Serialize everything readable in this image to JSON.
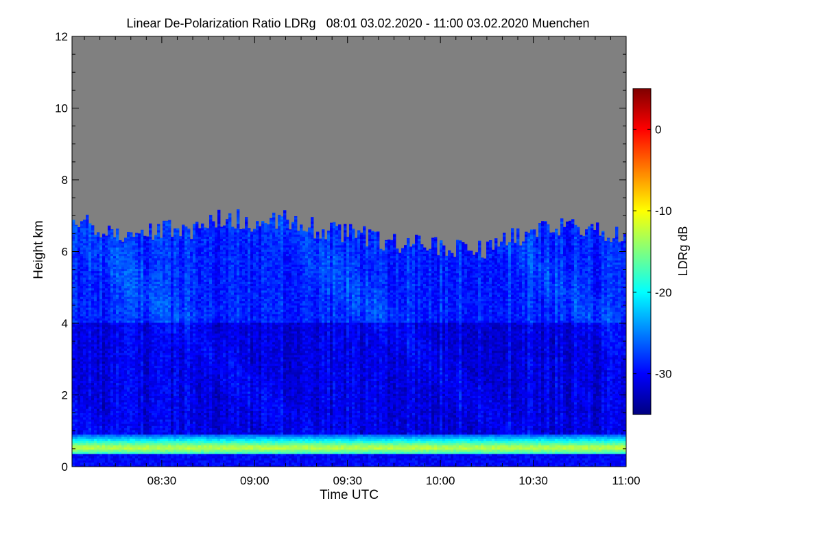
{
  "chart_data": {
    "type": "heatmap",
    "title": "Linear De-Polarization Ratio LDRg   08:01 03.02.2020 - 11:00 03.02.2020 Muenchen",
    "xlabel": "Time UTC",
    "ylabel": "Height km",
    "colorbar_label": "LDRg dB",
    "x_range": [
      "08:01",
      "11:00"
    ],
    "x_ticks": [
      "08:30",
      "09:00",
      "09:30",
      "10:00",
      "10:30",
      "11:00"
    ],
    "x_tick_minutes": [
      29,
      59,
      89,
      119,
      149,
      179
    ],
    "y_range": [
      0,
      12
    ],
    "y_ticks": [
      0,
      2,
      4,
      6,
      8,
      10,
      12
    ],
    "colorbar_range": [
      -35,
      5
    ],
    "colorbar_ticks": [
      0,
      -10,
      -20,
      -30
    ],
    "colormap": [
      "#00007f",
      "#0000ff",
      "#007fff",
      "#00ffff",
      "#7fff7f",
      "#ffff00",
      "#ff7f00",
      "#ff0000",
      "#7f0000"
    ],
    "no_signal_color": "#808080",
    "cloud_top_km": {
      "time_min": [
        0,
        10,
        20,
        30,
        40,
        50,
        60,
        70,
        80,
        90,
        100,
        110,
        120,
        130,
        140,
        150,
        160,
        170,
        179
      ],
      "height": [
        7.0,
        6.6,
        6.5,
        6.7,
        6.6,
        7.0,
        6.7,
        6.9,
        6.6,
        6.5,
        6.3,
        6.2,
        6.1,
        6.0,
        6.3,
        6.6,
        6.7,
        6.5,
        6.5
      ]
    },
    "boundary_layer": {
      "top_km": 0.85,
      "peak_ldr_db": -12,
      "peak_height_km": 0.5
    },
    "background_ldr_db": -31
  }
}
